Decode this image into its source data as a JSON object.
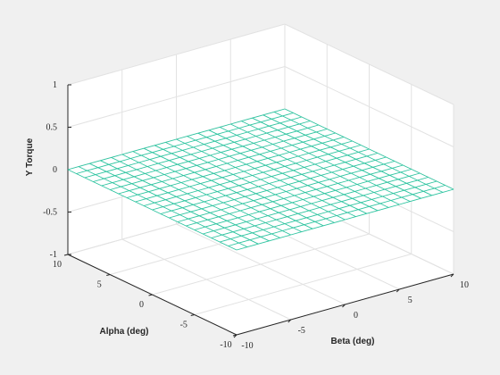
{
  "chart_data": {
    "type": "surface",
    "title": "",
    "xlabel": "Beta (deg)",
    "ylabel": "Alpha (deg)",
    "zlabel": "Y Torque",
    "xlim": [
      -10,
      10
    ],
    "ylim": [
      -10,
      10
    ],
    "zlim": [
      -1,
      1
    ],
    "xticks": [
      "-10",
      "-5",
      "0",
      "5",
      "10"
    ],
    "yticks": [
      "-10",
      "-5",
      "0",
      "5",
      "10"
    ],
    "zticks": [
      "-1",
      "-0.5",
      "0",
      "0.5",
      "1"
    ],
    "grid": true,
    "view": "3-D perspective",
    "surface": {
      "x_range": [
        -10,
        10
      ],
      "y_range": [
        -10,
        10
      ],
      "mesh_lines_x": 21,
      "mesh_lines_y": 21,
      "z_corners": {
        "x-10_y-10": 0.0,
        "x10_y-10": 0.0,
        "x10_y10": 0.0,
        "x-10_y10": 0.0
      },
      "color": "#2ec4a0"
    },
    "colors": {
      "background": "#f0f0f0",
      "axes_face": "#ffffff",
      "grid": "#e2e2e2",
      "axis_line": "#262626"
    }
  }
}
